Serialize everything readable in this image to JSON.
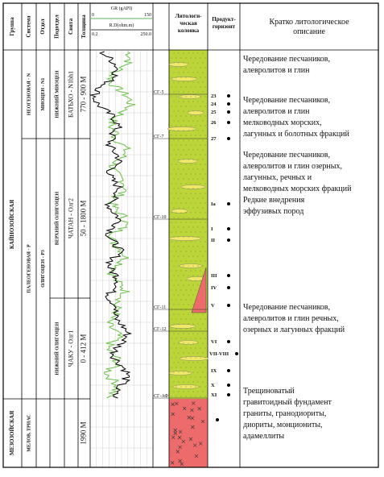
{
  "header": {
    "group": "Группа",
    "system": "Система",
    "series": "Отдел",
    "subseries": "Подотдел",
    "formation": "Свита",
    "thickness": "Толщина",
    "gr_label": "GR (gAPI)",
    "gr_min": "0",
    "gr_max": "150",
    "rd_label": "R.D(ohm.m)",
    "rd_min": "0.2",
    "rd_max": "250.0",
    "lithology": [
      "Литологи-",
      "ческая",
      "колонка"
    ],
    "horizon": [
      "Продукт-",
      "горизонт"
    ],
    "description": [
      "Кратко литологическое",
      "описание"
    ]
  },
  "groups": [
    "КАЙНОЗОЙСКАЯ",
    "МЕЗОЗОЙСКАЯ"
  ],
  "systems": [
    "НЕОГЕНОВАЯ - N",
    "ПАЛЕОГЕНОВАЯ - P",
    "МЕЛОВ, ТРИАС"
  ],
  "series": [
    "МИОЦЕН - N1",
    "ОЛИГОЦЕН - P3"
  ],
  "subseries": [
    "НИЖНИЙ МИОЦЕН",
    "ВЕРХНИЙ ОЛИГОЦЕН",
    "НИЖНИЙ ОЛИГОЦЕН"
  ],
  "formations": [
    "БАТЬХО - N1bh1",
    "ЧАТАН - Олг2",
    "ЧАКУ - Олг1"
  ],
  "thickness": [
    "770 - 900 М",
    "50 - 1800 М",
    "0 - 412 М",
    "1990 М"
  ],
  "markers": [
    "СГ-5",
    "СГ-7",
    "СГ-10",
    "СГ-11",
    "СГ-12",
    "СГ-АФ"
  ],
  "horizons": [
    "23",
    "24",
    "25",
    "26",
    "27",
    "Ia",
    "I",
    "II",
    "III",
    "IV",
    "V",
    "VI",
    "VII-VIII",
    "IX",
    "X",
    "XI"
  ],
  "descriptions": [
    [
      "Чередование песчаников,",
      "алевролитов и глин"
    ],
    [
      "Чередование песчаников,",
      "алевролитов и глин",
      "мелководных морских,",
      "лагунных и болотных фракций"
    ],
    [
      "Чередование песчаников,",
      "алевролитов и глин озерных,",
      "лагунных, речных и",
      "мелководных морских фракций",
      "Редкие внедрения",
      "эффузивых пород"
    ],
    [
      "Чередование песчаников,",
      "алевролитов и глин речных,",
      "озерных и лагунных фракций"
    ],
    [
      "Трещиноватый",
      "гравитоидный фундамент",
      "граниты, гранодиориты,",
      "диориты, монциониты,",
      "адамеллиты"
    ]
  ]
}
